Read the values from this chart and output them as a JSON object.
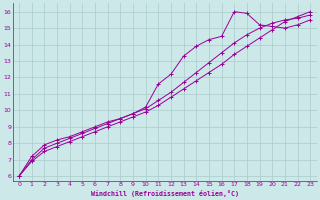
{
  "bg_color": "#cce8e8",
  "grid_color": "#aacccc",
  "line_color": "#990099",
  "xlabel": "Windchill (Refroidissement éolien,°C)",
  "xlim": [
    -0.5,
    23.5
  ],
  "ylim": [
    5.7,
    16.5
  ],
  "xticks": [
    0,
    1,
    2,
    3,
    4,
    5,
    6,
    7,
    8,
    9,
    10,
    11,
    12,
    13,
    14,
    15,
    16,
    17,
    18,
    19,
    20,
    21,
    22,
    23
  ],
  "yticks": [
    6,
    7,
    8,
    9,
    10,
    11,
    12,
    13,
    14,
    15,
    16
  ],
  "line1_x": [
    0,
    1,
    2,
    3,
    4,
    5,
    6,
    7,
    8,
    9,
    10,
    11,
    12,
    13,
    14,
    15,
    16,
    17,
    18,
    19,
    20,
    21,
    22,
    23
  ],
  "line1_y": [
    6.0,
    6.9,
    7.5,
    7.8,
    8.1,
    8.4,
    8.7,
    9.0,
    9.3,
    9.6,
    9.9,
    10.3,
    10.8,
    11.3,
    11.8,
    12.3,
    12.8,
    13.4,
    13.9,
    14.4,
    14.9,
    15.4,
    15.7,
    16.0
  ],
  "line2_x": [
    0,
    1,
    2,
    3,
    4,
    5,
    6,
    7,
    8,
    9,
    10,
    11,
    12,
    13,
    14,
    15,
    16,
    17,
    18,
    19,
    20,
    21,
    22,
    23
  ],
  "line2_y": [
    6.0,
    7.2,
    7.9,
    8.2,
    8.4,
    8.7,
    9.0,
    9.3,
    9.5,
    9.8,
    10.1,
    10.6,
    11.1,
    11.7,
    12.3,
    12.9,
    13.5,
    14.1,
    14.6,
    15.0,
    15.3,
    15.5,
    15.6,
    15.8
  ],
  "line3_x": [
    0,
    1,
    2,
    3,
    4,
    5,
    6,
    7,
    8,
    9,
    10,
    11,
    12,
    13,
    14,
    15,
    16,
    17,
    18,
    19,
    20,
    21,
    22,
    23
  ],
  "line3_y": [
    6.0,
    7.0,
    7.7,
    8.0,
    8.3,
    8.6,
    8.9,
    9.2,
    9.5,
    9.8,
    10.2,
    11.6,
    12.2,
    13.3,
    13.9,
    14.3,
    14.5,
    16.0,
    15.9,
    15.2,
    15.1,
    15.0,
    15.2,
    15.5
  ]
}
